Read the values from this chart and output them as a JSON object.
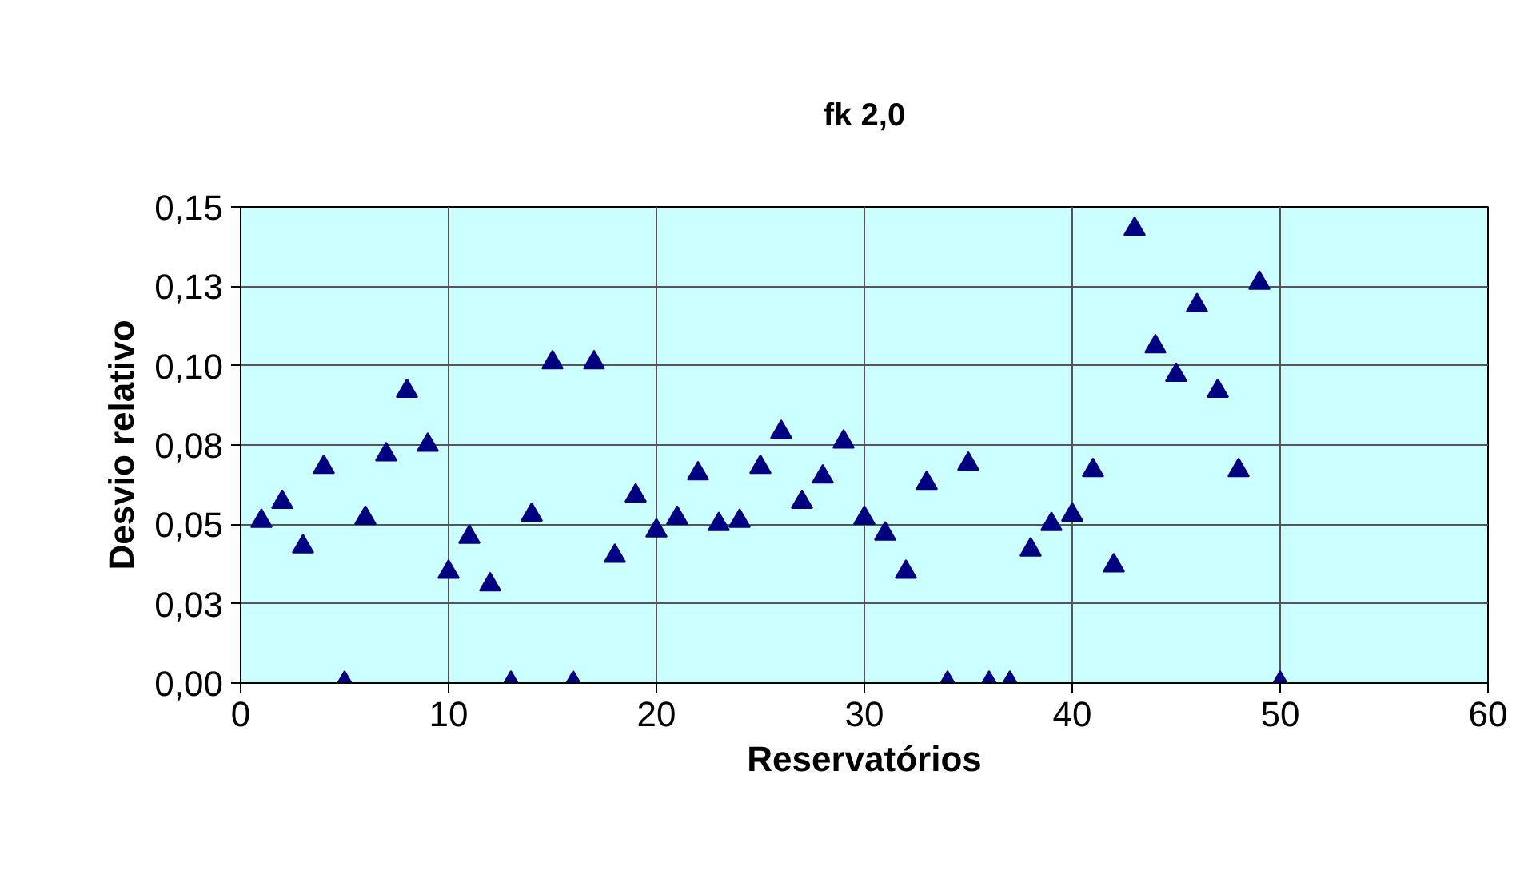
{
  "chart_data": {
    "type": "scatter",
    "title": "fk 2,0",
    "xlabel": "Reservatórios",
    "ylabel": "Desvio relativo",
    "x": [
      1,
      2,
      3,
      4,
      5,
      6,
      7,
      8,
      9,
      10,
      11,
      12,
      13,
      14,
      15,
      16,
      17,
      18,
      19,
      20,
      21,
      22,
      23,
      24,
      25,
      26,
      27,
      28,
      29,
      30,
      31,
      32,
      33,
      34,
      35,
      36,
      37,
      38,
      39,
      40,
      41,
      42,
      43,
      44,
      45,
      46,
      47,
      48,
      49,
      50
    ],
    "series": [
      {
        "color": "#000080",
        "values": [
          0.051,
          0.057,
          0.043,
          0.068,
          0,
          0.052,
          0.072,
          0.092,
          0.075,
          0.035,
          0.046,
          0.031,
          0,
          0.053,
          0.101,
          0,
          0.101,
          0.04,
          0.059,
          0.048,
          0.052,
          0.066,
          0.05,
          0.051,
          0.068,
          0.079,
          0.057,
          0.065,
          0.076,
          0.052,
          0.047,
          0.035,
          0.063,
          0,
          0.069,
          0,
          0,
          0.042,
          0.05,
          0.053,
          0.067,
          0.037,
          0.143,
          0.106,
          0.097,
          0.119,
          0.092,
          0.067,
          0.126,
          0
        ]
      }
    ],
    "xlim": [
      0,
      60
    ],
    "xticks": [
      0,
      10,
      20,
      30,
      40,
      50,
      60
    ],
    "ylim": [
      0,
      0.15
    ],
    "yticks": [
      {
        "value": 0,
        "label": "0,00"
      },
      {
        "value": 0.025,
        "label": "0,03"
      },
      {
        "value": 0.05,
        "label": "0,05"
      },
      {
        "value": 0.075,
        "label": "0,08"
      },
      {
        "value": 0.1,
        "label": "0,10"
      },
      {
        "value": 0.125,
        "label": "0,13"
      },
      {
        "value": 0.15,
        "label": "0,15"
      }
    ],
    "grid": true,
    "marker": "triangle"
  }
}
